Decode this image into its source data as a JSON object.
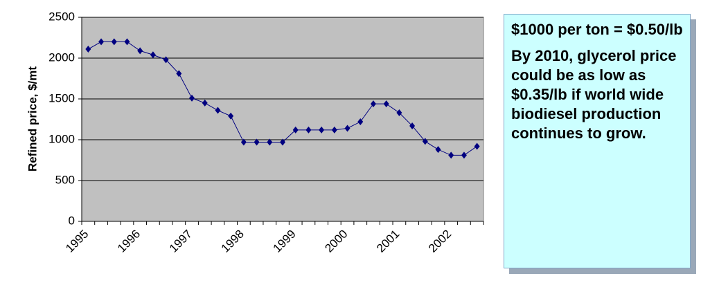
{
  "chart_data": {
    "type": "line",
    "y_label": "Refined price, $/mt",
    "categories": [
      "1995",
      null,
      null,
      null,
      "1996",
      null,
      null,
      null,
      "1997",
      null,
      null,
      null,
      "1998",
      null,
      null,
      null,
      "1999",
      null,
      null,
      null,
      "2000",
      null,
      null,
      null,
      "2001",
      null,
      null,
      null,
      "2002",
      null,
      null
    ],
    "values": [
      2110,
      2200,
      2200,
      2200,
      2090,
      2040,
      1980,
      1810,
      1510,
      1450,
      1360,
      1290,
      970,
      970,
      970,
      970,
      1120,
      1120,
      1120,
      1120,
      1140,
      1220,
      1440,
      1440,
      1330,
      1170,
      980,
      880,
      810,
      810,
      920
    ],
    "color": "#000080",
    "ylim": [
      0,
      2500
    ],
    "yticks": [
      0,
      500,
      1000,
      1500,
      2000,
      2500
    ],
    "grid": true
  },
  "note": {
    "paragraphs": [
      "$1000 per ton = $0.50/lb",
      "By 2010, glycerol price could be as low as $0.35/lb if world wide biodiesel production continues to grow."
    ]
  }
}
